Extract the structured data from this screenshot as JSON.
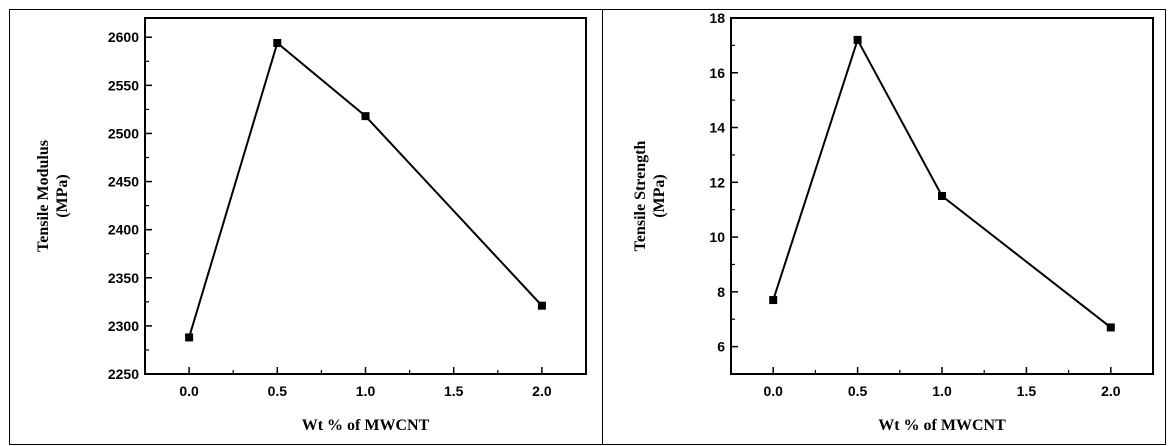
{
  "chart_data": [
    {
      "type": "line",
      "xlabel": "Wt % of MWCNT",
      "ylabel": [
        "Tensile Modulus",
        "(MPa)"
      ],
      "xlim": [
        -0.25,
        2.25
      ],
      "ylim": [
        2250,
        2620
      ],
      "x_ticks": [
        0.0,
        0.5,
        1.0,
        1.5,
        2.0
      ],
      "x_tick_labels": [
        "0.0",
        "0.5",
        "1.0",
        "1.5",
        "2.0"
      ],
      "y_ticks": [
        2250,
        2300,
        2350,
        2400,
        2450,
        2500,
        2550,
        2600
      ],
      "y_tick_labels": [
        "2250",
        "2300",
        "2350",
        "2400",
        "2450",
        "2500",
        "2550",
        "2600"
      ],
      "grid": false,
      "marker": "square",
      "color": "#000000",
      "series": [
        {
          "x": [
            0.0,
            0.5,
            1.0,
            2.0
          ],
          "y": [
            2288,
            2594,
            2518,
            2321
          ]
        }
      ]
    },
    {
      "type": "line",
      "xlabel": "Wt % of MWCNT",
      "ylabel": [
        "Tensile Strength",
        "(MPa)"
      ],
      "xlim": [
        -0.25,
        2.25
      ],
      "ylim": [
        5,
        18
      ],
      "x_ticks": [
        0.0,
        0.5,
        1.0,
        1.5,
        2.0
      ],
      "x_tick_labels": [
        "0.0",
        "0.5",
        "1.0",
        "1.5",
        "2.0"
      ],
      "y_ticks": [
        6,
        8,
        10,
        12,
        14,
        16,
        18
      ],
      "y_tick_labels": [
        "6",
        "8",
        "10",
        "12",
        "14",
        "16",
        "18"
      ],
      "grid": false,
      "marker": "square",
      "color": "#000000",
      "series": [
        {
          "x": [
            0.0,
            0.5,
            1.0,
            2.0
          ],
          "y": [
            7.7,
            17.2,
            11.5,
            6.7
          ]
        }
      ]
    }
  ]
}
